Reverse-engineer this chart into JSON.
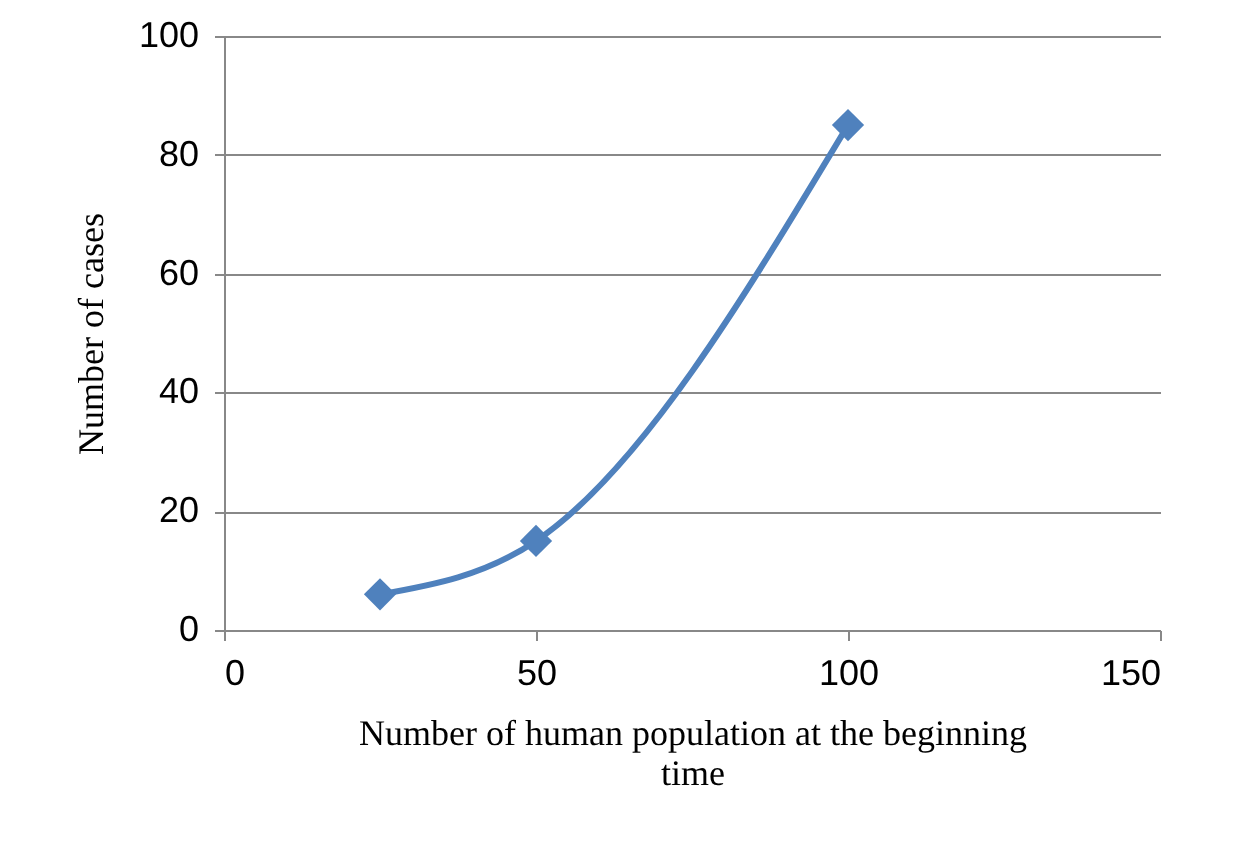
{
  "chart_data": {
    "type": "line",
    "xlabel": "Number of  human population at the beginning time",
    "ylabel": "Number of cases",
    "x": [
      25,
      50,
      100
    ],
    "series": [
      {
        "color": "#4f81bd",
        "values": [
          6,
          15,
          85
        ]
      }
    ],
    "xlim": [
      0,
      150
    ],
    "xticks": [
      0,
      50,
      100,
      150
    ],
    "ylim": [
      0,
      100
    ],
    "yticks": [
      0,
      20,
      40,
      60,
      80,
      100
    ],
    "grid": "y",
    "marker": "diamond",
    "line_style": "solid"
  }
}
